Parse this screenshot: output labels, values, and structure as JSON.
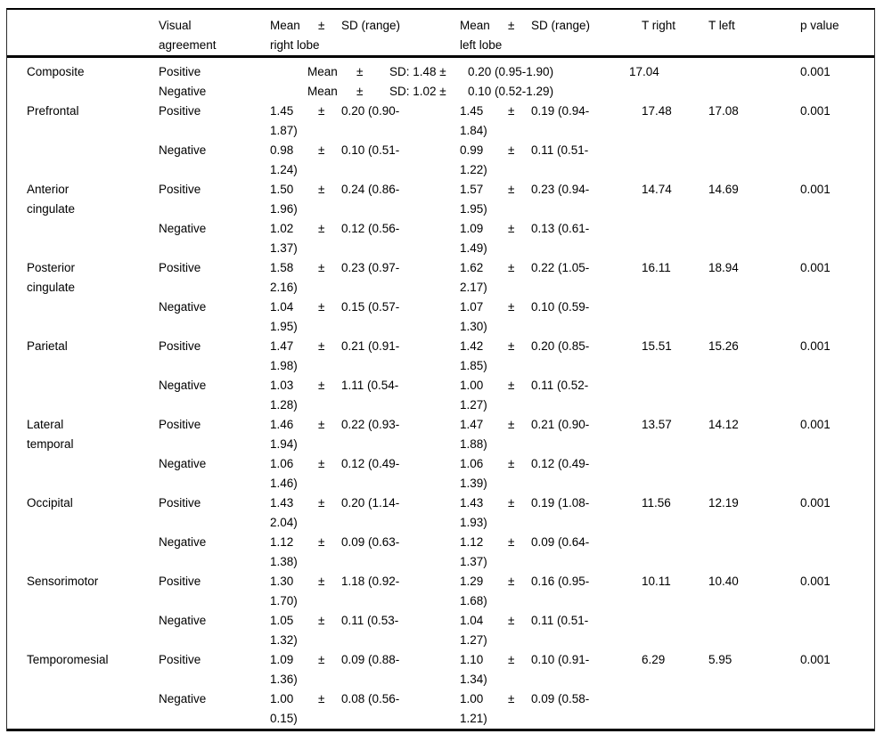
{
  "header": {
    "region": "",
    "agreement": "Visual agreement",
    "right_lobe": {
      "mean": "Mean",
      "pm": "±",
      "sd": "SD (range)",
      "lobe": "right lobe"
    },
    "left_lobe": {
      "mean": "Mean",
      "pm": "±",
      "sd": "SD (range)",
      "lobe": "left lobe"
    },
    "t_right": "T right",
    "t_left": "T left",
    "p": "p value"
  },
  "rows": [
    {
      "region": [
        "Composite"
      ],
      "entries": [
        {
          "agreement": "Positive",
          "merged": {
            "mean": "Mean",
            "pm": "±",
            "sd": "SD: 1.48 ±",
            "range": "0.20 (0.95-1.90)"
          },
          "t": "17.04",
          "p": "0.001"
        },
        {
          "agreement": "Negative",
          "merged": {
            "mean": "Mean",
            "pm": "±",
            "sd": "SD: 1.02 ±",
            "range": "0.10 (0.52-1.29)"
          }
        }
      ]
    },
    {
      "region": [
        "Prefrontal"
      ],
      "entries": [
        {
          "agreement": "Positive",
          "right": {
            "mean": "1.45",
            "pm": "±",
            "sd": "0.20 (0.90-",
            "cont": "1.87)"
          },
          "left": {
            "mean": "1.45",
            "pm": "±",
            "sd": "0.19 (0.94-",
            "cont": "1.84)"
          },
          "t_right": "17.48",
          "t_left": "17.08",
          "p": "0.001"
        },
        {
          "agreement": "Negative",
          "right": {
            "mean": "0.98",
            "pm": "±",
            "sd": "0.10 (0.51-",
            "cont": "1.24)"
          },
          "left": {
            "mean": "0.99",
            "pm": "±",
            "sd": "0.11 (0.51-",
            "cont": "1.22)"
          }
        }
      ]
    },
    {
      "region": [
        "Anterior",
        "cingulate"
      ],
      "entries": [
        {
          "agreement": "Positive",
          "right": {
            "mean": "1.50",
            "pm": "±",
            "sd": "0.24 (0.86-",
            "cont": "1.96)"
          },
          "left": {
            "mean": "1.57",
            "pm": "±",
            "sd": "0.23 (0.94-",
            "cont": "1.95)"
          },
          "t_right": "14.74",
          "t_left": "14.69",
          "p": "0.001"
        },
        {
          "agreement": "Negative",
          "right": {
            "mean": "1.02",
            "pm": "±",
            "sd": "0.12 (0.56-",
            "cont": "1.37)"
          },
          "left": {
            "mean": "1.09",
            "pm": "±",
            "sd": "0.13 (0.61-",
            "cont": "1.49)"
          }
        }
      ]
    },
    {
      "region": [
        "Posterior",
        "cingulate"
      ],
      "entries": [
        {
          "agreement": "Positive",
          "right": {
            "mean": "1.58",
            "pm": "±",
            "sd": "0.23 (0.97-",
            "cont": "2.16)"
          },
          "left": {
            "mean": "1.62",
            "pm": "±",
            "sd": "0.22 (1.05-",
            "cont": "2.17)"
          },
          "t_right": "16.11",
          "t_left": "18.94",
          "p": "0.001"
        },
        {
          "agreement": "Negative",
          "right": {
            "mean": "1.04",
            "pm": "±",
            "sd": "0.15 (0.57-",
            "cont": "1.95)"
          },
          "left": {
            "mean": "1.07",
            "pm": "±",
            "sd": "0.10 (0.59-",
            "cont": "1.30)"
          }
        }
      ]
    },
    {
      "region": [
        "Parietal"
      ],
      "entries": [
        {
          "agreement": "Positive",
          "right": {
            "mean": "1.47",
            "pm": "±",
            "sd": "0.21 (0.91-",
            "cont": "1.98)"
          },
          "left": {
            "mean": "1.42",
            "pm": "±",
            "sd": "0.20 (0.85-",
            "cont": "1.85)"
          },
          "t_right": "15.51",
          "t_left": "15.26",
          "p": "0.001"
        },
        {
          "agreement": "Negative",
          "right": {
            "mean": "1.03",
            "pm": "±",
            "sd": "1.11 (0.54-",
            "cont": "1.28)"
          },
          "left": {
            "mean": "1.00",
            "pm": "±",
            "sd": "0.11 (0.52-",
            "cont": "1.27)"
          }
        }
      ]
    },
    {
      "region": [
        "Lateral",
        "temporal"
      ],
      "entries": [
        {
          "agreement": "Positive",
          "right": {
            "mean": "1.46",
            "pm": "±",
            "sd": "0.22 (0.93-",
            "cont": "1.94)"
          },
          "left": {
            "mean": "1.47",
            "pm": "±",
            "sd": "0.21 (0.90-",
            "cont": "1.88)"
          },
          "t_right": "13.57",
          "t_left": "14.12",
          "p": "0.001"
        },
        {
          "agreement": "Negative",
          "right": {
            "mean": "1.06",
            "pm": "±",
            "sd": "0.12 (0.49-",
            "cont": "1.46)"
          },
          "left": {
            "mean": "1.06",
            "pm": "±",
            "sd": "0.12 (0.49-",
            "cont": "1.39)"
          }
        }
      ]
    },
    {
      "region": [
        "Occipital"
      ],
      "entries": [
        {
          "agreement": "Positive",
          "right": {
            "mean": "1.43",
            "pm": "±",
            "sd": "0.20 (1.14-",
            "cont": "2.04)"
          },
          "left": {
            "mean": "1.43",
            "pm": "±",
            "sd": "0.19 (1.08-",
            "cont": "1.93)"
          },
          "t_right": "11.56",
          "t_left": "12.19",
          "p": "0.001"
        },
        {
          "agreement": "Negative",
          "right": {
            "mean": "1.12",
            "pm": "±",
            "sd": "0.09 (0.63-",
            "cont": "1.38)"
          },
          "left": {
            "mean": "1.12",
            "pm": "±",
            "sd": "0.09 (0.64-",
            "cont": "1.37)"
          }
        }
      ]
    },
    {
      "region": [
        "Sensorimotor"
      ],
      "entries": [
        {
          "agreement": "Positive",
          "right": {
            "mean": "1.30",
            "pm": "±",
            "sd": "1.18 (0.92-",
            "cont": "1.70)"
          },
          "left": {
            "mean": "1.29",
            "pm": "±",
            "sd": "0.16 (0.95-",
            "cont": "1.68)"
          },
          "t_right": "10.11",
          "t_left": "10.40",
          "p": "0.001"
        },
        {
          "agreement": "Negative",
          "right": {
            "mean": "1.05",
            "pm": "±",
            "sd": "0.11 (0.53-",
            "cont": "1.32)"
          },
          "left": {
            "mean": "1.04",
            "pm": "±",
            "sd": "0.11 (0.51-",
            "cont": "1.27)"
          }
        }
      ]
    },
    {
      "region": [
        "Temporomesial"
      ],
      "entries": [
        {
          "agreement": "Positive",
          "right": {
            "mean": "1.09",
            "pm": "±",
            "sd": "0.09 (0.88-",
            "cont": "1.36)"
          },
          "left": {
            "mean": "1.10",
            "pm": "±",
            "sd": "0.10 (0.91-",
            "cont": "1.34)"
          },
          "t_right": "6.29",
          "t_left": "5.95",
          "p": "0.001"
        },
        {
          "agreement": "Negative",
          "right": {
            "mean": "1.00",
            "pm": "±",
            "sd": "0.08 (0.56-",
            "cont": "0.15)"
          },
          "left": {
            "mean": "1.00",
            "pm": "±",
            "sd": "0.09 (0.58-",
            "cont": "1.21)"
          }
        }
      ]
    }
  ]
}
